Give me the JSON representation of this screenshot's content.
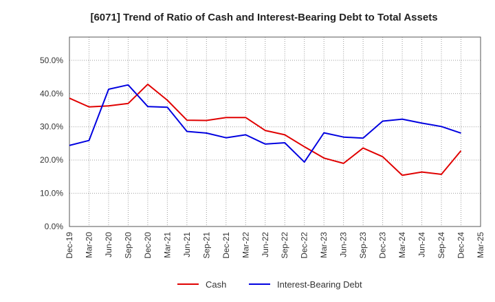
{
  "chart_data": {
    "type": "line",
    "title": "[6071]  Trend of Ratio of Cash and Interest-Bearing Debt to Total Assets",
    "xlabel": "",
    "ylabel": "",
    "x": [
      "Dec-19",
      "Mar-20",
      "Jun-20",
      "Sep-20",
      "Dec-20",
      "Mar-21",
      "Jun-21",
      "Sep-21",
      "Dec-21",
      "Mar-22",
      "Jun-22",
      "Sep-22",
      "Dec-22",
      "Mar-23",
      "Jun-23",
      "Sep-23",
      "Dec-23",
      "Mar-24",
      "Jun-24",
      "Sep-24",
      "Dec-24",
      "Mar-25"
    ],
    "ylim": [
      0,
      57
    ],
    "yticks": [
      0,
      10,
      20,
      30,
      40,
      50
    ],
    "ytick_labels": [
      "0.0%",
      "10.0%",
      "20.0%",
      "30.0%",
      "40.0%",
      "50.0%"
    ],
    "grid": true,
    "legend_position": "bottom-center",
    "series": [
      {
        "name": "Cash",
        "color": "#e00000",
        "values": [
          38.6,
          36.0,
          36.3,
          37.0,
          42.8,
          38.0,
          32.0,
          31.9,
          32.8,
          32.8,
          28.9,
          27.6,
          24.0,
          20.6,
          19.0,
          23.6,
          21.0,
          15.4,
          16.4,
          15.7,
          22.8,
          null
        ]
      },
      {
        "name": "Interest-Bearing Debt",
        "color": "#0000e0",
        "values": [
          24.4,
          25.9,
          41.3,
          42.6,
          36.1,
          35.9,
          28.6,
          28.1,
          26.7,
          27.6,
          24.8,
          25.2,
          19.4,
          28.2,
          26.9,
          26.6,
          31.7,
          32.3,
          31.1,
          30.1,
          28.1,
          null
        ]
      }
    ]
  }
}
